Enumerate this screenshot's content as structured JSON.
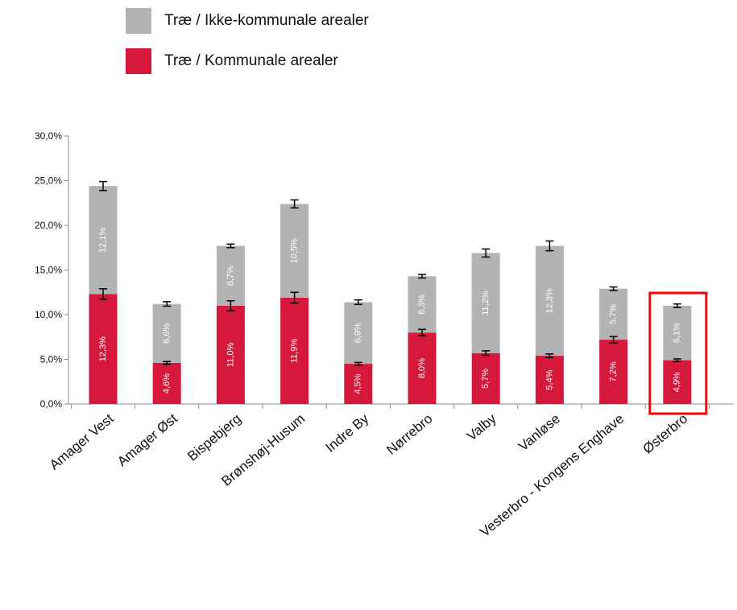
{
  "legend": {
    "items": [
      {
        "label": "Træ / Ikke-kommunale arealer",
        "color": "#b3b3b3"
      },
      {
        "label": "Træ / Kommunale arealer",
        "color": "#d6183c"
      }
    ]
  },
  "highlight": {
    "category": "Østerbro",
    "color": "#ff0000"
  },
  "chart_data": {
    "type": "bar",
    "stacked": true,
    "categories": [
      "Amager Vest",
      "Amager Øst",
      "Bispebjerg",
      "Brønshøj-Husum",
      "Indre By",
      "Nørrebro",
      "Valby",
      "Vanløse",
      "Vesterbro - Kongens Enghave",
      "Østerbro"
    ],
    "series": [
      {
        "name": "Træ / Kommunale arealer",
        "color": "#d6183c",
        "values": [
          12.3,
          4.6,
          11.0,
          11.9,
          4.5,
          8.0,
          5.7,
          5.4,
          7.2,
          4.9
        ],
        "labels": [
          "12,3%",
          "4,6%",
          "11,0%",
          "11,9%",
          "4,5%",
          "8,0%",
          "5,7%",
          "5,4%",
          "7,2%",
          "4,9%"
        ],
        "error": [
          0.6,
          0.15,
          0.55,
          0.6,
          0.15,
          0.35,
          0.25,
          0.2,
          0.35,
          0.15
        ]
      },
      {
        "name": "Træ / Ikke-kommunale arealer",
        "color": "#b3b3b3",
        "values": [
          12.1,
          6.6,
          6.7,
          10.5,
          6.9,
          6.3,
          11.2,
          12.3,
          5.7,
          6.1
        ],
        "labels": [
          "12,1%",
          "6,6%",
          "6,7%",
          "10,5%",
          "6,9%",
          "6,3%",
          "11,2%",
          "12,3%",
          "5,7%",
          "6,1%"
        ],
        "error": [
          0.5,
          0.25,
          0.2,
          0.45,
          0.25,
          0.2,
          0.45,
          0.55,
          0.2,
          0.2
        ]
      }
    ],
    "ylim": [
      0,
      30
    ],
    "yticks": [
      0,
      5,
      10,
      15,
      20,
      25,
      30
    ],
    "ytick_labels": [
      "0,0%",
      "5,0%",
      "10,0%",
      "15,0%",
      "20,0%",
      "25,0%",
      "30,0%"
    ],
    "title": "",
    "xlabel": "",
    "ylabel": "",
    "grid": false,
    "legend_position": "top"
  }
}
